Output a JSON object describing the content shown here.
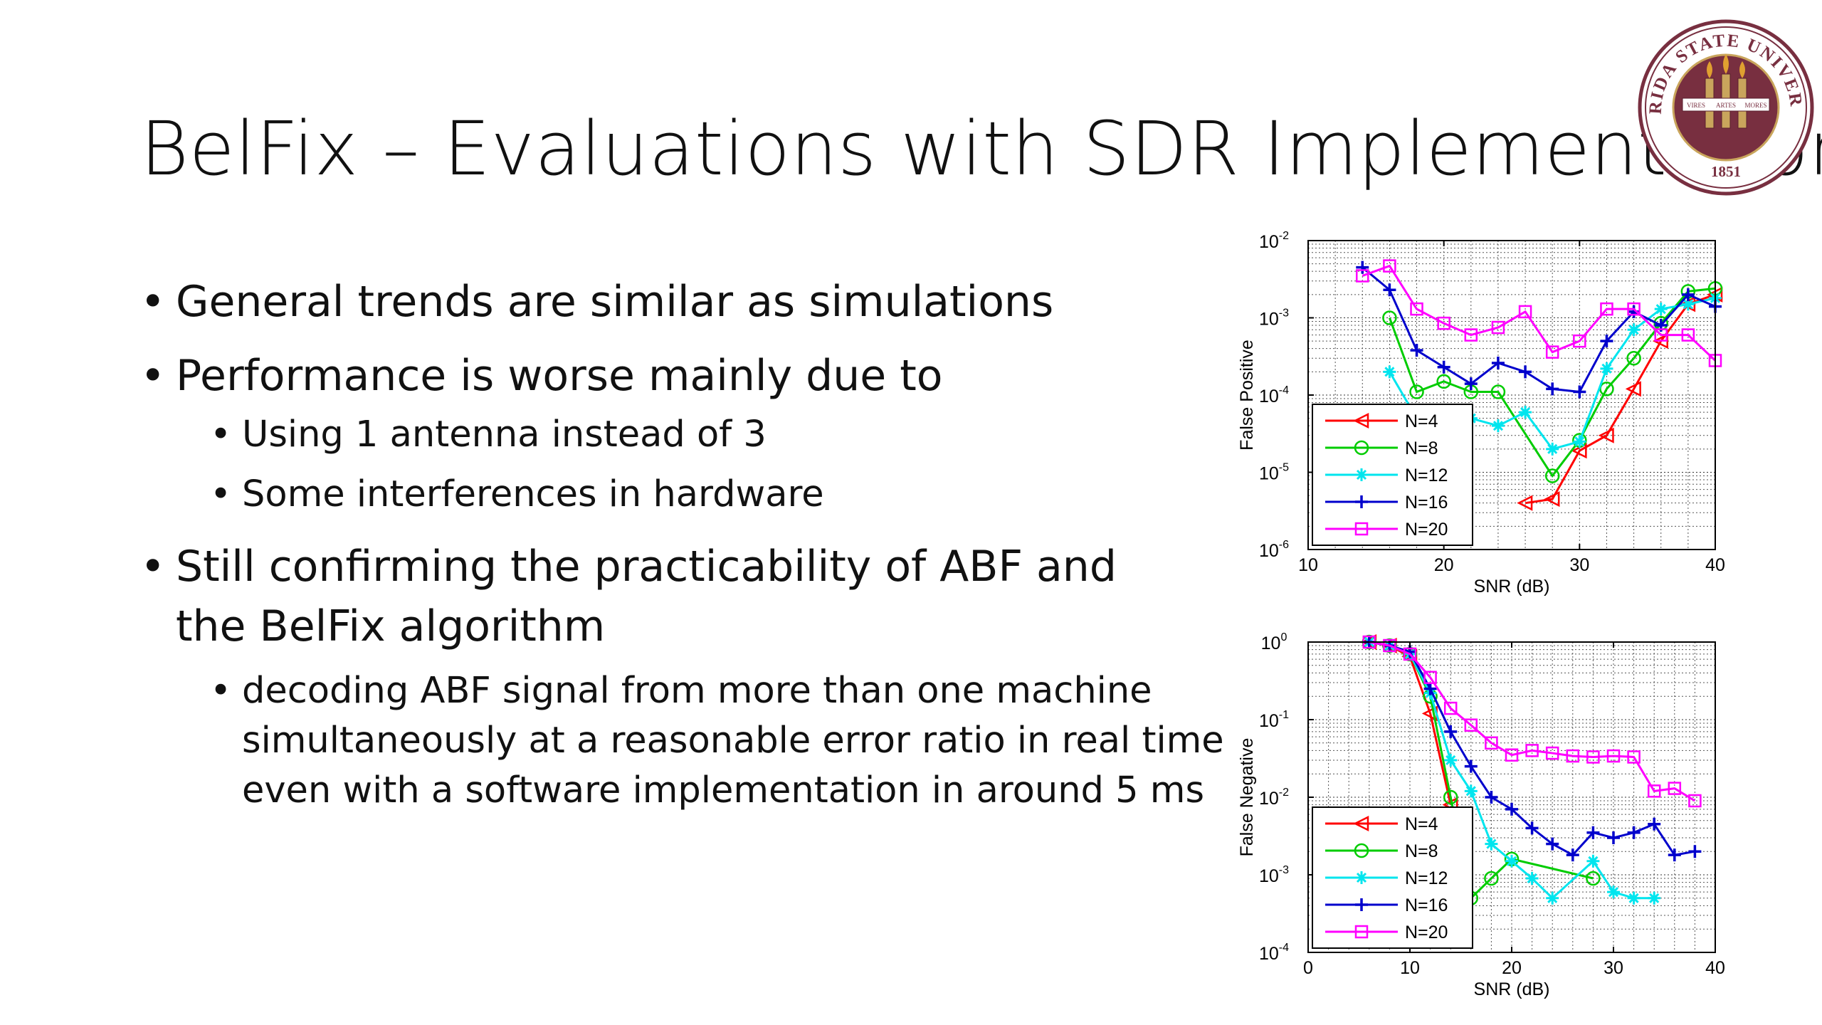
{
  "slide": {
    "title": "BelFix – Evaluations with SDR Implementation",
    "bullets": [
      {
        "level": 1,
        "text": "General trends are similar as simulations"
      },
      {
        "level": 1,
        "text": "Performance is worse mainly due to"
      },
      {
        "level": 2,
        "text": "Using 1 antenna instead of 3"
      },
      {
        "level": 2,
        "text": "Some interferences in hardware"
      },
      {
        "level": 1,
        "text": "Still confirming the practicability of ABF and the BelFix algorithm"
      },
      {
        "level": 2,
        "text": "decoding ABF signal from more than one machine simultaneously at a reasonable error ratio in real time even with a software implementation in around 5 ms"
      }
    ]
  },
  "seal": {
    "arc_text": "FLORIDA STATE UNIVERSITY",
    "year": "1851",
    "banner": [
      "VIRES",
      "ARTES",
      "MORES"
    ],
    "color": "#782f40"
  },
  "chart_data": [
    {
      "type": "line",
      "xlabel": "SNR (dB)",
      "ylabel": "False Positive",
      "xlim": [
        10,
        40
      ],
      "xticks": [
        10,
        20,
        30,
        40
      ],
      "yscale": "log",
      "ylim": [
        1e-06,
        0.01
      ],
      "yticks": [
        {
          "exp": "-6"
        },
        {
          "exp": "-5"
        },
        {
          "exp": "-4"
        },
        {
          "exp": "-3"
        },
        {
          "exp": "-2"
        }
      ],
      "grid": true,
      "legend": "bottom-left",
      "series": [
        {
          "name": "N=4",
          "color": "#ff0000",
          "marker": "triangle-left",
          "x": [
            26,
            28,
            30,
            32,
            34,
            36,
            38,
            40
          ],
          "y": [
            4e-06,
            4.5e-06,
            1.9e-05,
            3e-05,
            0.00012,
            0.0005,
            0.0015,
            0.002
          ]
        },
        {
          "name": "N=8",
          "color": "#00cc00",
          "marker": "circle",
          "x": [
            16,
            18,
            20,
            22,
            24,
            28,
            30,
            32,
            34,
            36,
            38,
            40
          ],
          "y": [
            0.001,
            0.00011,
            0.00015,
            0.00011,
            0.00011,
            9e-06,
            2.6e-05,
            0.00012,
            0.0003,
            0.00085,
            0.0022,
            0.0024
          ]
        },
        {
          "name": "N=12",
          "color": "#00e5ee",
          "marker": "star",
          "x": [
            16,
            18,
            20,
            22,
            24,
            26,
            28,
            30,
            32,
            34,
            36,
            38,
            40
          ],
          "y": [
            0.0002,
            5e-05,
            4e-05,
            5e-05,
            4e-05,
            6e-05,
            2e-05,
            2.5e-05,
            0.00022,
            0.0007,
            0.0013,
            0.0015,
            0.0018
          ]
        },
        {
          "name": "N=16",
          "color": "#0000cc",
          "marker": "plus",
          "x": [
            14,
            16,
            18,
            20,
            22,
            24,
            26,
            28,
            30,
            32,
            34,
            36,
            38,
            40
          ],
          "y": [
            0.0045,
            0.0023,
            0.00038,
            0.00023,
            0.00014,
            0.00026,
            0.0002,
            0.00012,
            0.00011,
            0.0005,
            0.0012,
            0.0008,
            0.002,
            0.0014
          ]
        },
        {
          "name": "N=20",
          "color": "#ff00ff",
          "marker": "square",
          "x": [
            14,
            16,
            18,
            20,
            22,
            24,
            26,
            28,
            30,
            32,
            34,
            36,
            38,
            40
          ],
          "y": [
            0.0035,
            0.0047,
            0.0013,
            0.00085,
            0.0006,
            0.00075,
            0.0012,
            0.00036,
            0.0005,
            0.0013,
            0.0013,
            0.0006,
            0.0006,
            0.00028
          ]
        }
      ]
    },
    {
      "type": "line",
      "xlabel": "SNR (dB)",
      "ylabel": "False Negative",
      "xlim": [
        0,
        40
      ],
      "xticks": [
        0,
        10,
        20,
        30,
        40
      ],
      "yscale": "log",
      "ylim": [
        0.0001,
        1
      ],
      "yticks": [
        {
          "exp": "-4"
        },
        {
          "exp": "-3"
        },
        {
          "exp": "-2"
        },
        {
          "exp": "-1"
        },
        {
          "exp": "0"
        }
      ],
      "grid": true,
      "legend": "bottom-left",
      "series": [
        {
          "name": "N=4",
          "color": "#ff0000",
          "marker": "triangle-left",
          "x": [
            6,
            8,
            10,
            12,
            14
          ],
          "y": [
            1,
            0.9,
            0.65,
            0.12,
            0.008
          ]
        },
        {
          "name": "N=8",
          "color": "#00cc00",
          "marker": "circle",
          "x": [
            6,
            8,
            10,
            12,
            14,
            16,
            18,
            20,
            28
          ],
          "y": [
            1,
            0.9,
            0.7,
            0.2,
            0.01,
            0.0005,
            0.0009,
            0.0016,
            0.0009
          ]
        },
        {
          "name": "N=12",
          "color": "#00e5ee",
          "marker": "star",
          "x": [
            6,
            8,
            10,
            12,
            14,
            16,
            18,
            20,
            22,
            24,
            28,
            30,
            32,
            34
          ],
          "y": [
            1,
            0.9,
            0.7,
            0.22,
            0.03,
            0.012,
            0.0025,
            0.0015,
            0.0009,
            0.0005,
            0.0015,
            0.0006,
            0.0005,
            0.0005
          ]
        },
        {
          "name": "N=16",
          "color": "#0000cc",
          "marker": "plus",
          "x": [
            6,
            8,
            10,
            12,
            14,
            16,
            18,
            20,
            22,
            24,
            26,
            28,
            30,
            32,
            34,
            36,
            38
          ],
          "y": [
            1,
            0.9,
            0.75,
            0.25,
            0.07,
            0.025,
            0.01,
            0.007,
            0.004,
            0.0025,
            0.0018,
            0.0035,
            0.003,
            0.0035,
            0.0045,
            0.0018,
            0.002
          ]
        },
        {
          "name": "N=20",
          "color": "#ff00ff",
          "marker": "square",
          "x": [
            6,
            8,
            10,
            12,
            14,
            16,
            18,
            20,
            22,
            24,
            26,
            28,
            30,
            32,
            34,
            36,
            38
          ],
          "y": [
            1,
            0.9,
            0.7,
            0.35,
            0.14,
            0.085,
            0.05,
            0.035,
            0.04,
            0.037,
            0.034,
            0.033,
            0.034,
            0.033,
            0.012,
            0.013,
            0.009
          ]
        }
      ]
    }
  ]
}
